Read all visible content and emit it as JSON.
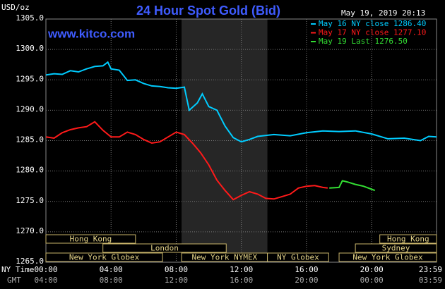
{
  "chart_data": {
    "type": "line",
    "title": "24 Hour Spot Gold (Bid)",
    "y_label": "USD/oz",
    "source": "www.kitco.com",
    "timestamp": "May 19, 2019 20:13",
    "x_label": "NY Time",
    "x2_label": "GMT",
    "xlim": [
      0,
      23.983
    ],
    "xticks": [
      {
        "value": 0,
        "label": "00:00"
      },
      {
        "value": 4,
        "label": "04:00"
      },
      {
        "value": 8,
        "label": "08:00"
      },
      {
        "value": 12,
        "label": "12:00"
      },
      {
        "value": 16,
        "label": "16:00"
      },
      {
        "value": 20,
        "label": "20:00"
      },
      {
        "value": 23.983,
        "label": "23:59"
      }
    ],
    "x2tick_labels": [
      "04:00",
      "08:00",
      "12:00",
      "16:00",
      "20:00",
      "00:00",
      "03:59"
    ],
    "ylim": [
      1265,
      1305
    ],
    "yticks": [
      {
        "value": 1265,
        "label": "1265.0"
      },
      {
        "value": 1270,
        "label": "1270.0"
      },
      {
        "value": 1275,
        "label": "1275.0"
      },
      {
        "value": 1280,
        "label": "1280.0"
      },
      {
        "value": 1285,
        "label": "1285.0"
      },
      {
        "value": 1290,
        "label": "1290.0"
      },
      {
        "value": 1295,
        "label": "1295.0"
      },
      {
        "value": 1300,
        "label": "1300.0"
      },
      {
        "value": 1305,
        "label": "1305.0"
      }
    ],
    "grid": true,
    "shaded_hours": [
      8.33,
      13.6
    ],
    "series": [
      {
        "name": "May 16 NY close 1286.40",
        "color": "#00ccff",
        "x": [
          0,
          0.5,
          1,
          1.5,
          2,
          2.5,
          3,
          3.5,
          3.8,
          4,
          4.5,
          5,
          5.5,
          6,
          6.5,
          7,
          7.5,
          8,
          8.5,
          8.8,
          9.3,
          9.6,
          10,
          10.5,
          11,
          11.5,
          12,
          12.5,
          13,
          14,
          15,
          16,
          17,
          18,
          19,
          20,
          21,
          22,
          23,
          23.5,
          23.983
        ],
        "values": [
          1295.8,
          1296.0,
          1295.9,
          1296.5,
          1296.3,
          1296.8,
          1297.2,
          1297.3,
          1297.9,
          1296.8,
          1296.6,
          1294.9,
          1295.0,
          1294.4,
          1294.0,
          1293.9,
          1293.7,
          1293.6,
          1293.8,
          1290.0,
          1291.2,
          1292.7,
          1290.6,
          1290.0,
          1287.4,
          1285.5,
          1284.8,
          1285.2,
          1285.7,
          1286.0,
          1285.8,
          1286.3,
          1286.6,
          1286.5,
          1286.6,
          1286.1,
          1285.3,
          1285.4,
          1285.0,
          1285.7,
          1285.6
        ]
      },
      {
        "name": "May 17 NY close 1277.10",
        "color": "#ff1a1a",
        "x": [
          0,
          0.5,
          1,
          1.5,
          2,
          2.5,
          3,
          3.5,
          4,
          4.5,
          5,
          5.5,
          6,
          6.5,
          7,
          7.5,
          8,
          8.5,
          9,
          9.5,
          10,
          10.5,
          11,
          11.5,
          12,
          12.5,
          13,
          13.5,
          14,
          14.5,
          15,
          15.5,
          16,
          16.5,
          17,
          17.3
        ],
        "values": [
          1285.6,
          1285.4,
          1286.3,
          1286.8,
          1287.1,
          1287.3,
          1288.1,
          1286.7,
          1285.6,
          1285.6,
          1286.4,
          1286.0,
          1285.2,
          1284.6,
          1284.8,
          1285.6,
          1286.4,
          1286.0,
          1284.6,
          1283.0,
          1281.0,
          1278.5,
          1276.8,
          1275.3,
          1276.0,
          1276.6,
          1276.2,
          1275.5,
          1275.4,
          1275.8,
          1276.2,
          1277.2,
          1277.5,
          1277.6,
          1277.3,
          1277.2
        ]
      },
      {
        "name": "May 19 Last 1276.50",
        "color": "#33dd33",
        "x": [
          17.4,
          18.0,
          18.2,
          18.5,
          19.0,
          19.5,
          20.0,
          20.2
        ],
        "values": [
          1277.2,
          1277.3,
          1278.4,
          1278.2,
          1277.8,
          1277.5,
          1277.0,
          1276.8
        ]
      }
    ],
    "session_rows": [
      [
        {
          "name": "Hong Kong",
          "start": 0,
          "end": 5.5
        },
        {
          "name": "Hong Kong",
          "start": 20.5,
          "end": 23.983
        }
      ],
      [
        {
          "name": "London",
          "start": 3.5,
          "end": 11.07
        },
        {
          "name": "Sydney",
          "start": 19.0,
          "end": 23.983
        }
      ],
      [
        {
          "name": "New York Globex",
          "start": 0,
          "end": 7.16
        },
        {
          "name": "New York NYMEX",
          "start": 8.33,
          "end": 13.6
        },
        {
          "name": "NY Globex",
          "start": 13.6,
          "end": 17.36
        },
        {
          "name": "New York Globex",
          "start": 18.0,
          "end": 23.983
        }
      ]
    ]
  }
}
